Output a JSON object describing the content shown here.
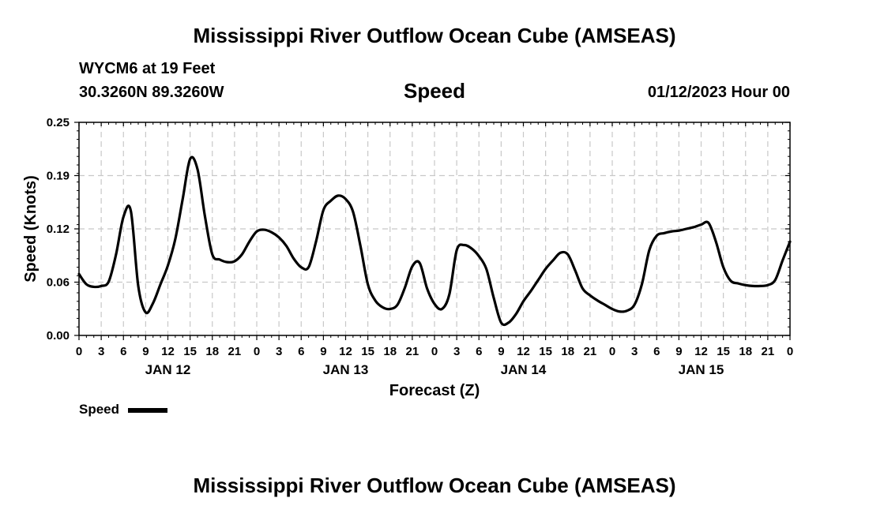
{
  "page": {
    "title_top": "Mississippi River Outflow Ocean Cube (AMSEAS)",
    "title_bottom": "Mississippi River Outflow Ocean Cube (AMSEAS)",
    "station": "WYCM6 at 19 Feet",
    "coords": "30.3260N  89.3260W",
    "variable": "Speed",
    "run_time": "01/12/2023 Hour 00",
    "legend_label": "Speed"
  },
  "chart_data": {
    "type": "line",
    "title": "Speed",
    "xlabel": "Forecast (Z)",
    "ylabel": "Speed (Knots)",
    "ylim": [
      0.0,
      0.25
    ],
    "xlim": [
      0,
      96
    ],
    "grid": true,
    "legend": "bottom-left",
    "y_ticks": [
      "0.00",
      "0.06",
      "0.12",
      "0.19",
      "0.25"
    ],
    "y_tick_values": [
      0.0,
      0.0625,
      0.125,
      0.1875,
      0.25
    ],
    "x_tick_hours": [
      0,
      3,
      6,
      9,
      12,
      15,
      18,
      21,
      24,
      27,
      30,
      33,
      36,
      39,
      42,
      45,
      48,
      51,
      54,
      57,
      60,
      63,
      66,
      69,
      72,
      75,
      78,
      81,
      84,
      87,
      90,
      93,
      96
    ],
    "x_tick_labels": [
      "0",
      "3",
      "6",
      "9",
      "12",
      "15",
      "18",
      "21",
      "0",
      "3",
      "6",
      "9",
      "12",
      "15",
      "18",
      "21",
      "0",
      "3",
      "6",
      "9",
      "12",
      "15",
      "18",
      "21",
      "0",
      "3",
      "6",
      "9",
      "12",
      "15",
      "18",
      "21",
      "0"
    ],
    "day_labels": [
      {
        "label": "JAN 12",
        "hour": 12
      },
      {
        "label": "JAN 13",
        "hour": 36
      },
      {
        "label": "JAN 14",
        "hour": 60
      },
      {
        "label": "JAN 15",
        "hour": 84
      }
    ],
    "series": [
      {
        "name": "Speed",
        "color": "#000000",
        "x": [
          0,
          1,
          2,
          3,
          4,
          5,
          6,
          7,
          8,
          9,
          10,
          11,
          12,
          13,
          14,
          15,
          16,
          17,
          18,
          19,
          20,
          21,
          22,
          23,
          24,
          25,
          26,
          27,
          28,
          29,
          30,
          31,
          32,
          33,
          34,
          35,
          36,
          37,
          38,
          39,
          40,
          41,
          42,
          43,
          44,
          45,
          46,
          47,
          48,
          49,
          50,
          51,
          52,
          53,
          54,
          55,
          56,
          57,
          58,
          59,
          60,
          61,
          62,
          63,
          64,
          65,
          66,
          67,
          68,
          69,
          70,
          71,
          72,
          73,
          74,
          75,
          76,
          77,
          78,
          79,
          80,
          81,
          82,
          83,
          84,
          85,
          86,
          87,
          88,
          89,
          90,
          91,
          92,
          93,
          94,
          95,
          96
        ],
        "values": [
          0.072,
          0.06,
          0.057,
          0.058,
          0.063,
          0.095,
          0.139,
          0.146,
          0.058,
          0.027,
          0.038,
          0.06,
          0.082,
          0.113,
          0.16,
          0.207,
          0.195,
          0.14,
          0.095,
          0.089,
          0.086,
          0.087,
          0.095,
          0.11,
          0.122,
          0.124,
          0.121,
          0.115,
          0.105,
          0.09,
          0.08,
          0.08,
          0.11,
          0.147,
          0.158,
          0.164,
          0.16,
          0.145,
          0.105,
          0.06,
          0.041,
          0.033,
          0.031,
          0.036,
          0.056,
          0.081,
          0.085,
          0.055,
          0.037,
          0.031,
          0.048,
          0.1,
          0.106,
          0.102,
          0.093,
          0.078,
          0.044,
          0.015,
          0.015,
          0.025,
          0.04,
          0.052,
          0.065,
          0.078,
          0.088,
          0.097,
          0.095,
          0.076,
          0.055,
          0.047,
          0.041,
          0.036,
          0.031,
          0.028,
          0.029,
          0.036,
          0.06,
          0.1,
          0.117,
          0.12,
          0.122,
          0.123,
          0.125,
          0.127,
          0.13,
          0.132,
          0.11,
          0.08,
          0.064,
          0.061,
          0.059,
          0.058,
          0.058,
          0.059,
          0.065,
          0.088,
          0.11
        ]
      }
    ]
  }
}
